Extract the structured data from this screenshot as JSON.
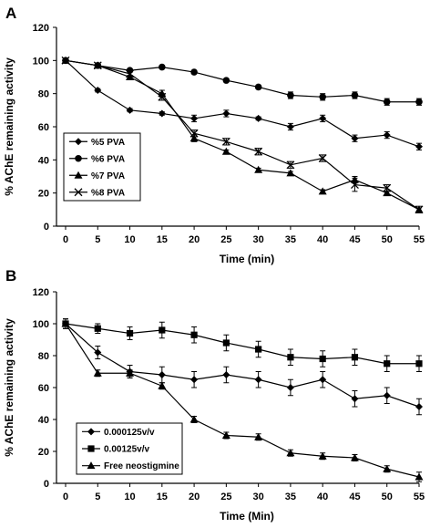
{
  "chart_data": [
    {
      "type": "line",
      "panel": "A",
      "xlabel": "Time (min)",
      "ylabel": "% AChE remaining activity",
      "x": [
        0,
        5,
        10,
        15,
        20,
        25,
        30,
        35,
        40,
        45,
        50,
        55
      ],
      "xlim": [
        0,
        55
      ],
      "ylim": [
        0,
        120
      ],
      "yticks": [
        0,
        20,
        40,
        60,
        80,
        100,
        120
      ],
      "legend_position": "bottom-left",
      "series": [
        {
          "name": "%5 PVA",
          "marker": "diamond",
          "values": [
            100,
            82,
            70,
            68,
            65,
            68,
            65,
            60,
            65,
            53,
            55,
            48
          ],
          "errors": [
            1,
            1,
            1,
            1,
            2,
            2,
            1,
            2,
            2,
            2,
            2,
            2
          ]
        },
        {
          "name": "%6 PVA",
          "marker": "circle",
          "values": [
            100,
            97,
            94,
            96,
            93,
            88,
            84,
            79,
            78,
            79,
            75,
            75
          ],
          "errors": [
            1,
            1,
            1,
            1,
            1,
            1,
            1,
            2,
            2,
            2,
            2,
            2
          ]
        },
        {
          "name": "%7 PVA",
          "marker": "triangle",
          "values": [
            100,
            97,
            90,
            80,
            53,
            45,
            34,
            32,
            21,
            28,
            20,
            10
          ],
          "errors": [
            1,
            1,
            1,
            2,
            2,
            1,
            1,
            1,
            1,
            2,
            1,
            1
          ]
        },
        {
          "name": "%8 PVA",
          "marker": "x",
          "values": [
            100,
            97,
            92,
            78,
            56,
            51,
            45,
            37,
            41,
            25,
            23,
            10
          ],
          "errors": [
            1,
            1,
            1,
            2,
            2,
            2,
            2,
            2,
            2,
            4,
            2,
            2
          ]
        }
      ]
    },
    {
      "type": "line",
      "panel": "B",
      "xlabel": "Time (Min)",
      "ylabel": "% AChE remaining activity",
      "x": [
        0,
        5,
        10,
        15,
        20,
        25,
        30,
        35,
        40,
        45,
        50,
        55
      ],
      "xlim": [
        0,
        55
      ],
      "ylim": [
        0,
        120
      ],
      "yticks": [
        0,
        20,
        40,
        60,
        80,
        100,
        120
      ],
      "legend_position": "bottom-left",
      "series": [
        {
          "name": "0.000125v/v",
          "marker": "diamond",
          "values": [
            100,
            82,
            70,
            68,
            65,
            68,
            65,
            60,
            65,
            53,
            55,
            48
          ],
          "errors": [
            3,
            4,
            4,
            5,
            5,
            5,
            5,
            5,
            5,
            5,
            5,
            5
          ]
        },
        {
          "name": "0.00125v/v",
          "marker": "square",
          "values": [
            100,
            97,
            94,
            96,
            93,
            88,
            84,
            79,
            78,
            79,
            75,
            75
          ],
          "errors": [
            3,
            3,
            4,
            5,
            5,
            5,
            5,
            5,
            5,
            5,
            5,
            5
          ]
        },
        {
          "name": "Free neostigmine",
          "marker": "triangle",
          "values": [
            100,
            69,
            69,
            61,
            40,
            30,
            29,
            19,
            17,
            16,
            9,
            4
          ],
          "errors": [
            3,
            2,
            2,
            2,
            2,
            2,
            2,
            2,
            2,
            2,
            2,
            3
          ]
        }
      ]
    }
  ]
}
